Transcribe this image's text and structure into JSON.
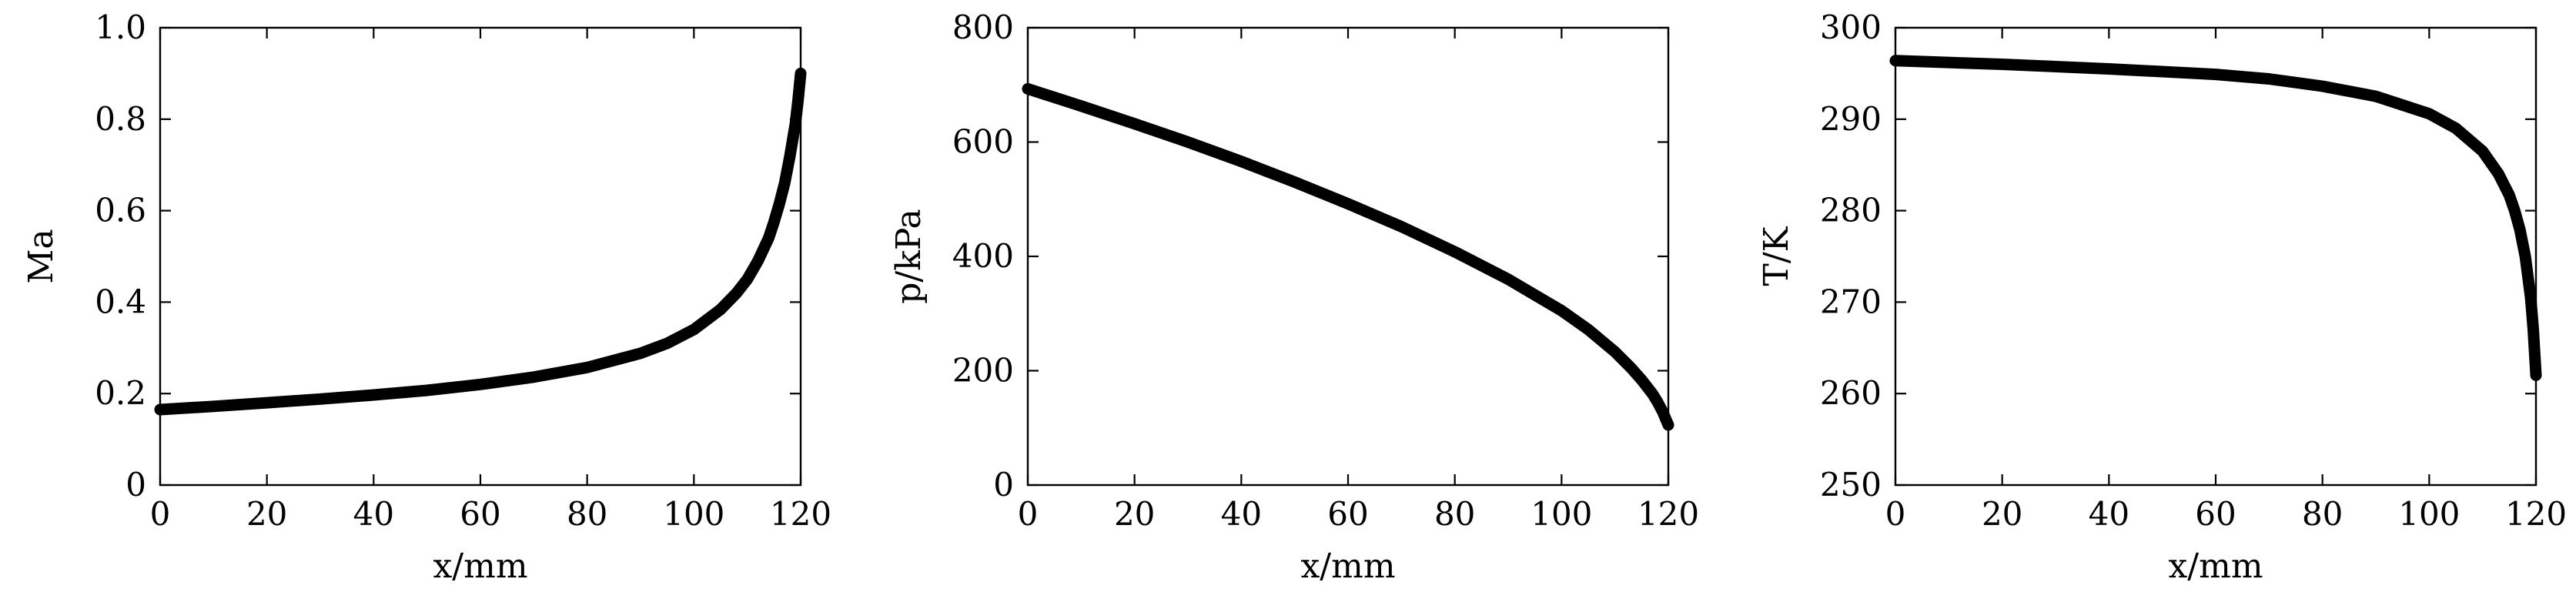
{
  "chart_data": [
    {
      "type": "line",
      "title": "",
      "xlabel": "x/mm",
      "ylabel": "Ma",
      "xlim": [
        0,
        120
      ],
      "ylim": [
        0,
        1.0
      ],
      "xticks": [
        "0",
        "20",
        "40",
        "60",
        "80",
        "100",
        "120"
      ],
      "yticks": [
        "0",
        "0.2",
        "0.4",
        "0.6",
        "0.8",
        "1.0"
      ],
      "grid": false,
      "series": [
        {
          "x": [
            0,
            10,
            20,
            30,
            40,
            50,
            60,
            70,
            80,
            90,
            95,
            100,
            105,
            108,
            110,
            112,
            114,
            115,
            116,
            117,
            118,
            119,
            119.5,
            120
          ],
          "y": [
            0.165,
            0.172,
            0.18,
            0.188,
            0.197,
            0.207,
            0.22,
            0.236,
            0.257,
            0.288,
            0.31,
            0.34,
            0.384,
            0.42,
            0.45,
            0.49,
            0.54,
            0.575,
            0.615,
            0.66,
            0.72,
            0.79,
            0.84,
            0.9
          ]
        }
      ]
    },
    {
      "type": "line",
      "title": "",
      "xlabel": "x/mm",
      "ylabel": "p/kPa",
      "xlim": [
        0,
        120
      ],
      "ylim": [
        0,
        800
      ],
      "xticks": [
        "0",
        "20",
        "40",
        "60",
        "80",
        "100",
        "120"
      ],
      "yticks": [
        "0",
        "200",
        "400",
        "600",
        "800"
      ],
      "grid": false,
      "series": [
        {
          "x": [
            0,
            10,
            20,
            30,
            40,
            50,
            60,
            70,
            80,
            90,
            100,
            105,
            110,
            113,
            115,
            117,
            118,
            119,
            119.5,
            120
          ],
          "y": [
            693,
            663,
            632,
            600,
            566,
            530,
            492,
            452,
            408,
            360,
            305,
            272,
            233,
            205,
            184,
            160,
            145,
            127,
            116,
            105
          ]
        }
      ]
    },
    {
      "type": "line",
      "title": "",
      "xlabel": "x/mm",
      "ylabel": "T/K",
      "xlim": [
        0,
        120
      ],
      "ylim": [
        250,
        300
      ],
      "xticks": [
        "0",
        "20",
        "40",
        "60",
        "80",
        "100",
        "120"
      ],
      "yticks": [
        "250",
        "260",
        "270",
        "280",
        "290",
        "300"
      ],
      "grid": false,
      "series": [
        {
          "x": [
            0,
            20,
            40,
            60,
            70,
            80,
            90,
            100,
            105,
            110,
            113,
            115,
            116,
            117,
            118,
            119,
            119.5,
            120
          ],
          "y": [
            296.4,
            296.0,
            295.5,
            294.9,
            294.4,
            293.6,
            292.5,
            290.6,
            289.0,
            286.5,
            284.0,
            281.7,
            280.0,
            277.9,
            275.0,
            270.5,
            267.0,
            262.0
          ]
        }
      ]
    }
  ]
}
